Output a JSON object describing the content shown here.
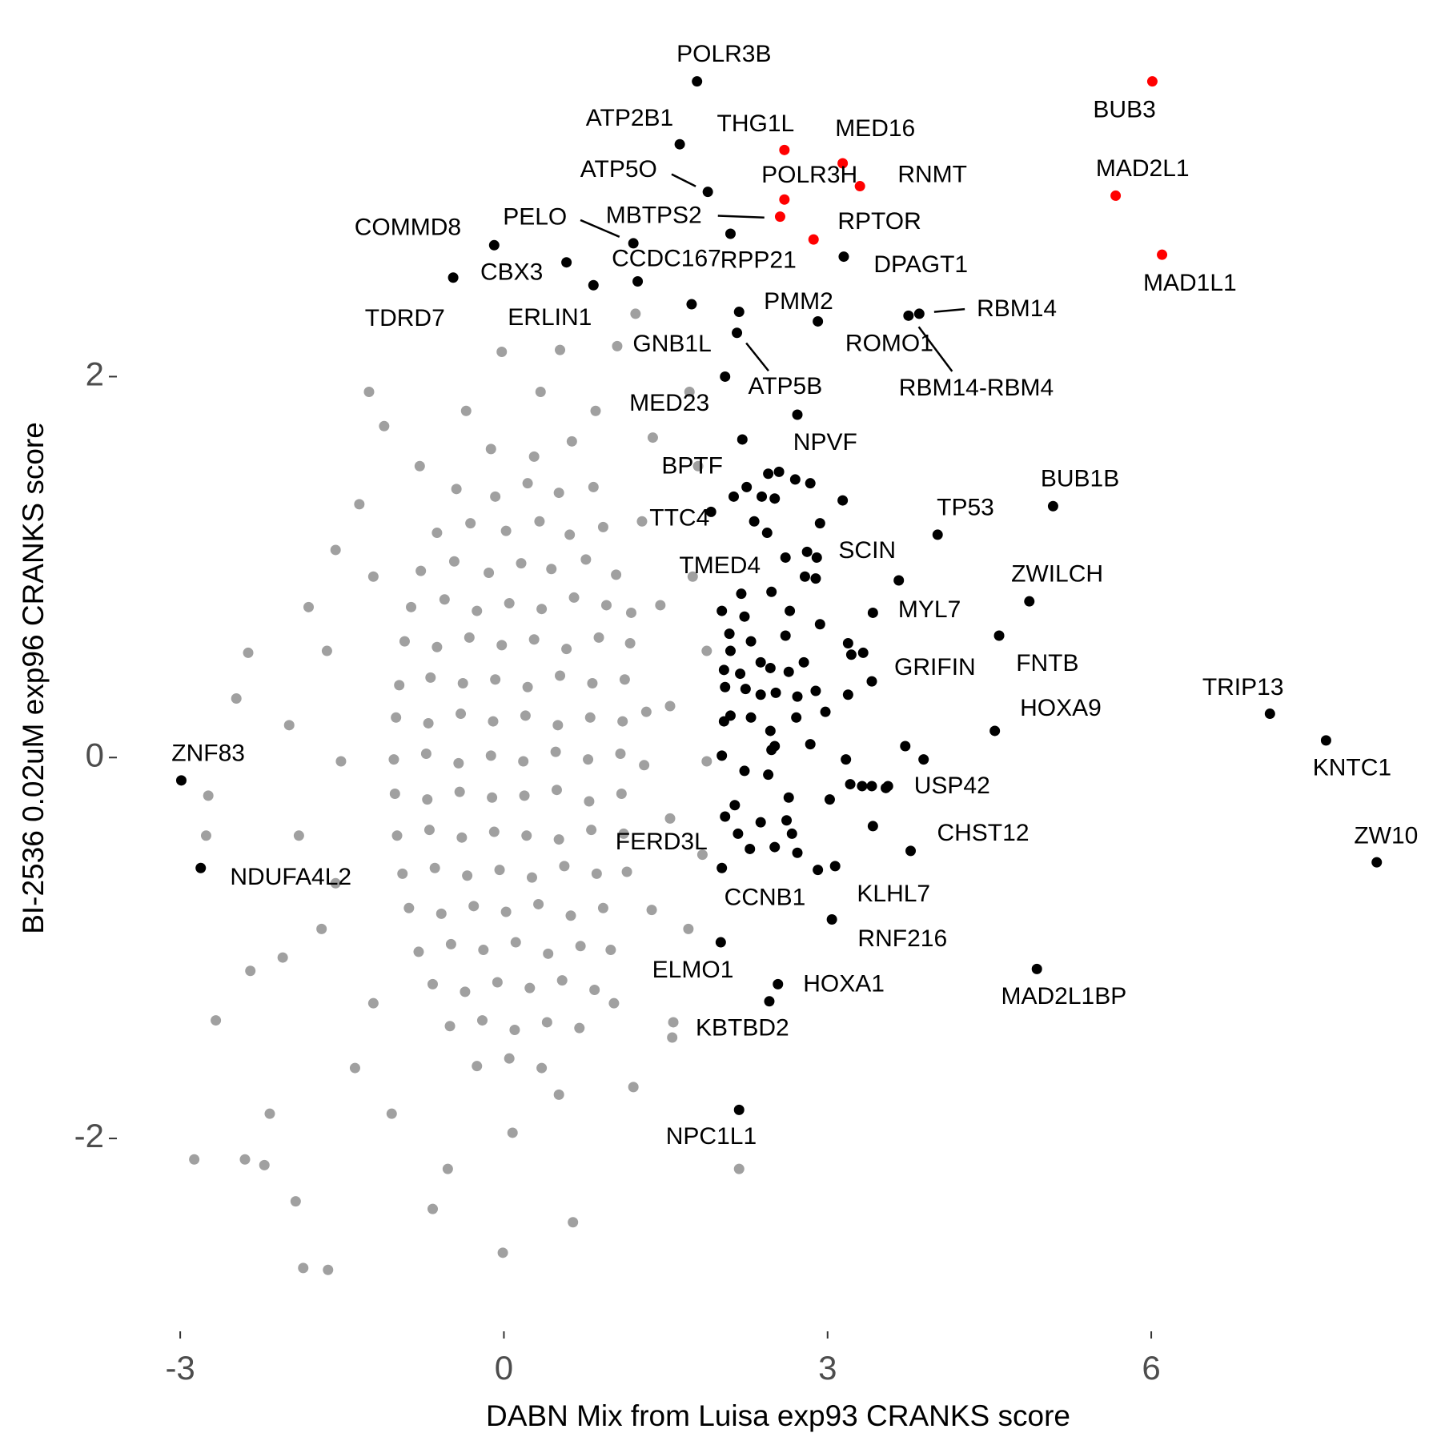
{
  "chart_data": {
    "type": "scatter",
    "x_label": "DABN Mix from Luisa exp93 CRANKS score",
    "y_label": "BI-2536 0.02uM exp96 CRANKS score",
    "xlim": [
      -3.55,
      8.5
    ],
    "ylim": [
      -3,
      3.7
    ],
    "xticks": [
      -3,
      0,
      3,
      6
    ],
    "yticks": [
      -2,
      0,
      2
    ],
    "grid": false,
    "series": [
      {
        "color": "#a0a0a0",
        "x": [
          -0.12,
          0.28,
          0.63,
          -0.44,
          -0.08,
          0.22,
          0.51,
          0.83,
          -0.62,
          -0.31,
          0.02,
          0.33,
          0.61,
          0.92,
          -0.77,
          -0.46,
          -0.14,
          0.16,
          0.44,
          0.76,
          1.04,
          -0.86,
          -0.55,
          -0.25,
          0.05,
          0.35,
          0.65,
          0.95,
          1.18,
          -0.92,
          -0.62,
          -0.32,
          -0.02,
          0.28,
          0.58,
          0.88,
          1.17,
          -0.97,
          -0.68,
          -0.38,
          -0.08,
          0.22,
          0.52,
          0.82,
          1.12,
          -1.0,
          -0.7,
          -0.4,
          -0.1,
          0.2,
          0.5,
          0.8,
          1.1,
          1.32,
          -1.02,
          -0.72,
          -0.42,
          -0.12,
          0.18,
          0.48,
          0.78,
          1.08,
          1.3,
          -1.01,
          -0.71,
          -0.41,
          -0.11,
          0.19,
          0.49,
          0.79,
          1.09,
          -0.99,
          -0.69,
          -0.39,
          -0.09,
          0.21,
          0.51,
          0.81,
          1.11,
          -0.94,
          -0.64,
          -0.34,
          -0.04,
          0.26,
          0.56,
          0.86,
          1.14,
          -0.88,
          -0.58,
          -0.28,
          0.02,
          0.32,
          0.62,
          0.92,
          -0.79,
          -0.49,
          -0.19,
          0.11,
          0.41,
          0.71,
          0.99,
          -0.66,
          -0.36,
          -0.06,
          0.24,
          0.54,
          0.84,
          -0.5,
          -0.2,
          0.1,
          0.4,
          0.7,
          -0.25,
          0.05,
          0.35,
          -2.87,
          -2.4,
          -2.22,
          -1.93,
          -1.86,
          -1.63,
          -0.01,
          0.64,
          -0.66,
          -2.67,
          -2.74,
          -2.76,
          -2.48,
          -2.37,
          -1.25,
          -1.11,
          -0.02,
          0.52,
          1.05,
          1.22,
          2.18,
          1.57,
          1.56,
          1.2,
          -2.35,
          -2.17,
          -2.05,
          -1.81,
          -1.56,
          -0.78,
          1.38,
          1.72,
          1.8,
          1.75,
          1.88,
          1.88,
          1.84,
          1.71,
          -1.38,
          -1.04,
          0.08,
          -0.52,
          0.51,
          -1.9,
          -1.99,
          -1.69,
          -1.64,
          -1.21,
          -0.35,
          0.34,
          0.85,
          1.28,
          1.45,
          1.54,
          1.54,
          1.37,
          1.02,
          -1.21,
          -1.56,
          -1.51,
          -1.34
        ],
        "y": [
          1.62,
          1.58,
          1.66,
          1.41,
          1.37,
          1.44,
          1.39,
          1.42,
          1.18,
          1.23,
          1.19,
          1.24,
          1.17,
          1.21,
          0.98,
          1.03,
          0.97,
          1.02,
          0.99,
          1.04,
          0.96,
          0.79,
          0.83,
          0.77,
          0.81,
          0.78,
          0.84,
          0.8,
          0.76,
          0.61,
          0.58,
          0.63,
          0.59,
          0.62,
          0.57,
          0.63,
          0.6,
          0.38,
          0.42,
          0.39,
          0.41,
          0.37,
          0.43,
          0.39,
          0.41,
          0.21,
          0.18,
          0.23,
          0.19,
          0.22,
          0.17,
          0.21,
          0.19,
          0.24,
          -0.01,
          0.02,
          -0.03,
          0.01,
          -0.02,
          0.03,
          -0.01,
          0.02,
          -0.04,
          -0.19,
          -0.22,
          -0.18,
          -0.21,
          -0.2,
          -0.17,
          -0.23,
          -0.19,
          -0.41,
          -0.38,
          -0.42,
          -0.39,
          -0.41,
          -0.43,
          -0.38,
          -0.4,
          -0.61,
          -0.58,
          -0.62,
          -0.59,
          -0.63,
          -0.57,
          -0.61,
          -0.6,
          -0.79,
          -0.82,
          -0.78,
          -0.81,
          -0.77,
          -0.83,
          -0.79,
          -1.02,
          -0.98,
          -1.01,
          -0.97,
          -1.03,
          -0.99,
          -1.01,
          -1.19,
          -1.23,
          -1.18,
          -1.21,
          -1.17,
          -1.22,
          -1.41,
          -1.38,
          -1.43,
          -1.39,
          -1.42,
          -1.62,
          -1.58,
          -1.63,
          -2.11,
          -2.11,
          -2.14,
          -2.33,
          -2.68,
          -2.69,
          -2.6,
          -2.44,
          -2.37,
          -1.38,
          -0.2,
          -0.41,
          0.31,
          0.55,
          1.92,
          1.74,
          2.13,
          2.14,
          2.16,
          2.33,
          -2.16,
          -1.39,
          -1.47,
          -1.73,
          -1.12,
          -1.87,
          -1.05,
          0.79,
          1.09,
          1.53,
          1.68,
          1.92,
          1.53,
          0.95,
          0.56,
          -0.02,
          -0.51,
          -0.9,
          -1.63,
          -1.87,
          -1.97,
          -2.16,
          -1.77,
          -0.41,
          0.17,
          -0.9,
          0.56,
          0.95,
          1.82,
          1.92,
          1.82,
          1.24,
          0.8,
          0.27,
          -0.32,
          -0.8,
          -1.29,
          -1.29,
          -0.66,
          -0.02,
          1.33
        ]
      },
      {
        "color": "#000000",
        "x": [
          1.79,
          1.63,
          1.89,
          -0.09,
          1.2,
          0.58,
          -0.47,
          1.24,
          0.83,
          2.1,
          3.15,
          1.74,
          2.18,
          2.91,
          3.85,
          3.75,
          2.16,
          2.05,
          2.72,
          2.21,
          1.92,
          2.2,
          3.66,
          4.02,
          5.09,
          4.87,
          3.42,
          3.41,
          4.59,
          7.1,
          4.55,
          7.62,
          -2.99,
          3.56,
          3.77,
          8.09,
          -2.81,
          2.02,
          3.07,
          2.91,
          3.04,
          2.01,
          4.94,
          2.54,
          2.46,
          2.18,
          2.45,
          2.55,
          2.7,
          2.84,
          2.25,
          2.13,
          2.39,
          2.51,
          3.14,
          2.32,
          2.93,
          2.44,
          2.81,
          2.9,
          2.61,
          2.79,
          2.89,
          2.48,
          2.02,
          2.23,
          2.65,
          2.93,
          2.09,
          2.29,
          2.61,
          3.19,
          3.22,
          3.33,
          2.1,
          2.38,
          2.04,
          2.19,
          2.47,
          2.64,
          2.78,
          2.05,
          2.24,
          2.38,
          2.52,
          2.72,
          2.89,
          3.19,
          2.1,
          2.29,
          2.71,
          2.98,
          2.04,
          2.47,
          2.51,
          2.84,
          3.72,
          3.89,
          2.02,
          2.48,
          3.17,
          2.23,
          2.45,
          3.21,
          3.41,
          3.32,
          3.54,
          2.64,
          3.02,
          2.14,
          2.05,
          2.38,
          2.62,
          3.42,
          2.17,
          2.67,
          2.28,
          2.51,
          2.72
        ],
        "y": [
          3.55,
          3.22,
          2.97,
          2.69,
          2.7,
          2.6,
          2.52,
          2.5,
          2.48,
          2.75,
          2.63,
          2.38,
          2.34,
          2.29,
          2.33,
          2.32,
          2.23,
          2.0,
          1.8,
          1.67,
          1.29,
          0.86,
          0.93,
          1.17,
          1.32,
          0.82,
          0.76,
          0.4,
          0.64,
          0.23,
          0.14,
          0.09,
          -0.12,
          -0.15,
          -0.49,
          -0.55,
          -0.58,
          -0.58,
          -0.57,
          -0.59,
          -0.85,
          -0.97,
          -1.11,
          -1.19,
          -1.28,
          -1.85,
          1.49,
          1.5,
          1.46,
          1.44,
          1.42,
          1.37,
          1.37,
          1.36,
          1.35,
          1.24,
          1.23,
          1.18,
          1.08,
          1.05,
          1.05,
          0.95,
          0.94,
          0.87,
          0.77,
          0.74,
          0.77,
          0.7,
          0.65,
          0.61,
          0.64,
          0.6,
          0.54,
          0.55,
          0.56,
          0.5,
          0.46,
          0.44,
          0.47,
          0.45,
          0.5,
          0.37,
          0.36,
          0.33,
          0.34,
          0.32,
          0.35,
          0.33,
          0.22,
          0.21,
          0.21,
          0.24,
          0.19,
          0.14,
          0.06,
          0.07,
          0.06,
          -0.01,
          0.01,
          0.04,
          -0.01,
          -0.07,
          -0.09,
          -0.14,
          -0.15,
          -0.15,
          -0.16,
          -0.21,
          -0.22,
          -0.25,
          -0.31,
          -0.34,
          -0.33,
          -0.36,
          -0.4,
          -0.4,
          -0.48,
          -0.47,
          -0.5
        ],
        "labels": [
          "POLR3B",
          "ATP2B1",
          "ATP5O",
          "COMMD8",
          "PELO",
          "CBX3",
          "TDRD7",
          "CCDC167",
          "ERLIN1",
          "RPP21",
          "DPAGT1",
          "GNB1L",
          "PMM2",
          "ROMO1",
          "RBM14",
          "RBM14-RBM4",
          "ATP5B",
          "MED23",
          "NPVF",
          "BPTF",
          "TTC4",
          "TMED4",
          "SCIN",
          "TP53",
          "BUB1B",
          "ZWILCH",
          "MYL7",
          "GRIFIN",
          "FNTB",
          "TRIP13",
          "HOXA9",
          "KNTC1",
          "ZNF83",
          "USP42",
          "CHST12",
          "ZW10",
          "NDUFA4L2",
          "FERD3L",
          "KLHL7",
          "CCNB1",
          "RNF216",
          "ELMO1",
          "MAD2L1BP",
          "HOXA1",
          "KBTBD2",
          "NPC1L1",
          null,
          null,
          null,
          null,
          null,
          null,
          null,
          null,
          null,
          null,
          null,
          null,
          null,
          null,
          null,
          null,
          null,
          null,
          null,
          null,
          null,
          null,
          null,
          null,
          null,
          null,
          null,
          null,
          null,
          null,
          null,
          null,
          null,
          null,
          null,
          null,
          null,
          null,
          null,
          null,
          null,
          null,
          null,
          null,
          null,
          null,
          null,
          null,
          null,
          null,
          null,
          null,
          null,
          null,
          null,
          null,
          null,
          null,
          null,
          null,
          null,
          null,
          null,
          null,
          null,
          null,
          null,
          null,
          null,
          null,
          null,
          null,
          null,
          null
        ]
      },
      {
        "color": "#ff0000",
        "x": [
          6.01,
          5.67,
          6.1,
          2.6,
          3.14,
          3.3,
          2.6,
          2.56,
          2.87
        ],
        "y": [
          3.55,
          2.95,
          2.64,
          3.19,
          3.12,
          3.0,
          2.93,
          2.84,
          2.72
        ],
        "labels": [
          "BUB3",
          "MAD2L1",
          "MAD1L1",
          "THG1L",
          "MED16",
          "RNMT",
          "POLR3H",
          "MBTPS2",
          "RPTOR"
        ]
      }
    ]
  }
}
